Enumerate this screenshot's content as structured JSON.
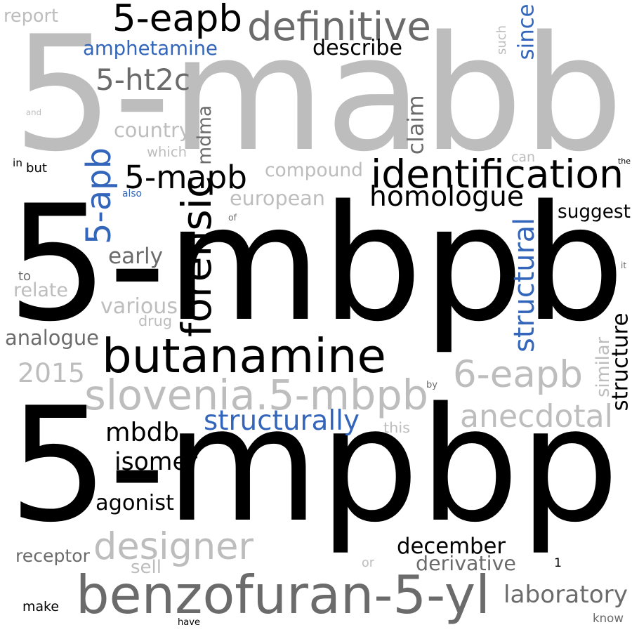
{
  "colors": {
    "black": "#000000",
    "dark_gray": "#6b6b6b",
    "light_gray": "#bdbdbd",
    "blue": "#3366bb"
  },
  "words": [
    {
      "id": "w1",
      "text": "5-mabb",
      "color": "light_gray",
      "orientation": "horizontal"
    },
    {
      "id": "w2",
      "text": "5-mbpb",
      "color": "black",
      "orientation": "horizontal"
    },
    {
      "id": "w3",
      "text": "5-mpbp",
      "color": "black",
      "orientation": "horizontal"
    },
    {
      "id": "w4",
      "text": "butanamine",
      "color": "black",
      "orientation": "horizontal"
    },
    {
      "id": "w5",
      "text": "benzofuran-5-yl",
      "color": "dark_gray",
      "orientation": "horizontal"
    },
    {
      "id": "w6",
      "text": "slovenia.5-mbpb",
      "color": "light_gray",
      "orientation": "horizontal"
    },
    {
      "id": "w7",
      "text": "identification",
      "color": "black",
      "orientation": "horizontal"
    },
    {
      "id": "w8",
      "text": "5-eapb",
      "color": "black",
      "orientation": "horizontal"
    },
    {
      "id": "w9",
      "text": "definitive",
      "color": "dark_gray",
      "orientation": "horizontal"
    },
    {
      "id": "w10",
      "text": "homologue",
      "color": "black",
      "orientation": "horizontal"
    },
    {
      "id": "w11",
      "text": "forensic",
      "color": "black",
      "orientation": "vertical"
    },
    {
      "id": "w12",
      "text": "5-mapb",
      "color": "black",
      "orientation": "horizontal"
    },
    {
      "id": "w13",
      "text": "designer",
      "color": "light_gray",
      "orientation": "horizontal"
    },
    {
      "id": "w14",
      "text": "6-eapb",
      "color": "light_gray",
      "orientation": "horizontal"
    },
    {
      "id": "w15",
      "text": "mbdb",
      "color": "black",
      "orientation": "horizontal"
    },
    {
      "id": "w16",
      "text": "5-apb",
      "color": "blue",
      "orientation": "vertical"
    },
    {
      "id": "w17",
      "text": "structural",
      "color": "blue",
      "orientation": "vertical"
    },
    {
      "id": "w18",
      "text": "anecdotal",
      "color": "light_gray",
      "orientation": "horizontal"
    },
    {
      "id": "w19",
      "text": "2015",
      "color": "light_gray",
      "orientation": "horizontal"
    },
    {
      "id": "w20",
      "text": "isomer",
      "color": "black",
      "orientation": "horizontal"
    },
    {
      "id": "w21",
      "text": "december",
      "color": "black",
      "orientation": "horizontal"
    },
    {
      "id": "w22",
      "text": "amphetamine",
      "color": "blue",
      "orientation": "horizontal"
    },
    {
      "id": "w23",
      "text": "5-ht2c",
      "color": "dark_gray",
      "orientation": "horizontal"
    },
    {
      "id": "w24",
      "text": "structurally",
      "color": "blue",
      "orientation": "horizontal"
    },
    {
      "id": "w25",
      "text": "compound",
      "color": "light_gray",
      "orientation": "horizontal"
    },
    {
      "id": "w26",
      "text": "laboratory",
      "color": "dark_gray",
      "orientation": "horizontal"
    },
    {
      "id": "w27",
      "text": "mdma",
      "color": "dark_gray",
      "orientation": "vertical"
    },
    {
      "id": "w28",
      "text": "european",
      "color": "light_gray",
      "orientation": "horizontal"
    },
    {
      "id": "w29",
      "text": "structure",
      "color": "black",
      "orientation": "vertical"
    },
    {
      "id": "w30",
      "text": "describe",
      "color": "black",
      "orientation": "horizontal"
    },
    {
      "id": "w31",
      "text": "suggest",
      "color": "black",
      "orientation": "horizontal"
    },
    {
      "id": "w32",
      "text": "country",
      "color": "light_gray",
      "orientation": "horizontal"
    },
    {
      "id": "w33",
      "text": "claim",
      "color": "dark_gray",
      "orientation": "vertical"
    },
    {
      "id": "w34",
      "text": "analogue",
      "color": "dark_gray",
      "orientation": "horizontal"
    },
    {
      "id": "w35",
      "text": "agonist",
      "color": "black",
      "orientation": "horizontal"
    },
    {
      "id": "w36",
      "text": "early",
      "color": "dark_gray",
      "orientation": "horizontal"
    },
    {
      "id": "w37",
      "text": "various",
      "color": "light_gray",
      "orientation": "horizontal"
    },
    {
      "id": "w38",
      "text": "receptor",
      "color": "dark_gray",
      "orientation": "horizontal"
    },
    {
      "id": "w39",
      "text": "derivative",
      "color": "dark_gray",
      "orientation": "horizontal"
    },
    {
      "id": "w40",
      "text": "sell",
      "color": "light_gray",
      "orientation": "horizontal"
    },
    {
      "id": "w41",
      "text": "since",
      "color": "blue",
      "orientation": "vertical"
    },
    {
      "id": "w42",
      "text": "relate",
      "color": "light_gray",
      "orientation": "horizontal"
    },
    {
      "id": "w43",
      "text": "similar",
      "color": "light_gray",
      "orientation": "vertical"
    },
    {
      "id": "w44",
      "text": "make",
      "color": "black",
      "orientation": "horizontal"
    },
    {
      "id": "w45",
      "text": "report",
      "color": "light_gray",
      "orientation": "horizontal"
    },
    {
      "id": "w46",
      "text": "know",
      "color": "dark_gray",
      "orientation": "horizontal"
    },
    {
      "id": "w47",
      "text": "drug",
      "color": "light_gray",
      "orientation": "horizontal"
    },
    {
      "id": "w48",
      "text": "which",
      "color": "light_gray",
      "orientation": "horizontal"
    },
    {
      "id": "w49",
      "text": "such",
      "color": "light_gray",
      "orientation": "vertical"
    },
    {
      "id": "w50",
      "text": "this",
      "color": "light_gray",
      "orientation": "horizontal"
    },
    {
      "id": "w51",
      "text": "can",
      "color": "light_gray",
      "orientation": "horizontal"
    },
    {
      "id": "w52",
      "text": "but",
      "color": "black",
      "orientation": "horizontal"
    },
    {
      "id": "w53",
      "text": "1",
      "color": "black",
      "orientation": "horizontal"
    },
    {
      "id": "w54",
      "text": "to",
      "color": "dark_gray",
      "orientation": "horizontal"
    },
    {
      "id": "w55",
      "text": "or",
      "color": "light_gray",
      "orientation": "horizontal"
    },
    {
      "id": "w56",
      "text": "have",
      "color": "black",
      "orientation": "horizontal"
    },
    {
      "id": "w57",
      "text": "in",
      "color": "black",
      "orientation": "horizontal"
    },
    {
      "id": "w58",
      "text": "also",
      "color": "blue",
      "orientation": "horizontal"
    },
    {
      "id": "w59",
      "text": "and",
      "color": "light_gray",
      "orientation": "horizontal"
    },
    {
      "id": "w60",
      "text": "by",
      "color": "dark_gray",
      "orientation": "horizontal"
    },
    {
      "id": "w61",
      "text": "the",
      "color": "black",
      "orientation": "horizontal"
    },
    {
      "id": "w62",
      "text": "of",
      "color": "dark_gray",
      "orientation": "horizontal"
    },
    {
      "id": "w63",
      "text": "it",
      "color": "dark_gray",
      "orientation": "horizontal"
    }
  ]
}
